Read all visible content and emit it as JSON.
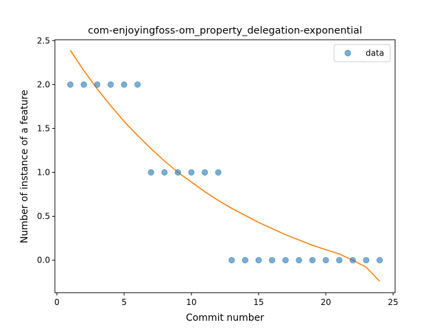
{
  "chart_data": {
    "type": "scatter",
    "title": "com-enjoyingfoss-om_property_delegation-exponential",
    "xlabel": "Commit number",
    "ylabel": "Number of instance of a feature",
    "xlim": [
      -0.15,
      25.15
    ],
    "ylim": [
      -0.37,
      2.51
    ],
    "x_ticks": [
      0,
      5,
      10,
      15,
      20,
      25
    ],
    "y_ticks": [
      -0.0,
      0.5,
      1.0,
      1.5,
      2.0,
      2.5
    ],
    "x_tick_labels": [
      "0",
      "5",
      "10",
      "15",
      "20",
      "25"
    ],
    "y_tick_labels": [
      "0.0",
      "0.5",
      "1.0",
      "1.5",
      "2.0",
      "2.5"
    ],
    "legend": {
      "position": "top-right",
      "entries": [
        "data"
      ]
    },
    "grid": false,
    "series": [
      {
        "name": "data",
        "kind": "scatter",
        "color": "#1f77b4",
        "x": [
          1,
          2,
          3,
          4,
          5,
          6,
          7,
          8,
          9,
          10,
          11,
          12,
          13,
          14,
          15,
          16,
          17,
          18,
          19,
          20,
          21,
          22,
          23,
          24
        ],
        "y": [
          2,
          2,
          2,
          2,
          2,
          2,
          1,
          1,
          1,
          1,
          1,
          1,
          0,
          0,
          0,
          0,
          0,
          0,
          0,
          0,
          0,
          0,
          0,
          0
        ]
      },
      {
        "kind": "line",
        "color": "#ff7f0e",
        "x": [
          1,
          2,
          3,
          4,
          5,
          6,
          7,
          8,
          9,
          10,
          11,
          12,
          13,
          14,
          15,
          16,
          17,
          18,
          19,
          20,
          21,
          22,
          23,
          24
        ],
        "y": [
          2.39,
          2.16,
          1.95,
          1.76,
          1.58,
          1.42,
          1.27,
          1.13,
          1.0,
          0.89,
          0.78,
          0.68,
          0.59,
          0.51,
          0.43,
          0.36,
          0.29,
          0.23,
          0.17,
          0.12,
          0.07,
          0.0,
          -0.08,
          -0.24
        ]
      }
    ]
  }
}
